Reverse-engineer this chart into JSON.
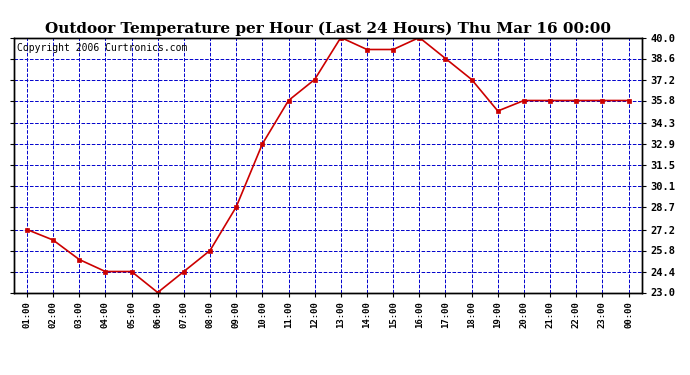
{
  "title": "Outdoor Temperature per Hour (Last 24 Hours) Thu Mar 16 00:00",
  "copyright": "Copyright 2006 Curtronics.com",
  "x_labels": [
    "01:00",
    "02:00",
    "03:00",
    "04:00",
    "05:00",
    "06:00",
    "07:00",
    "08:00",
    "09:00",
    "10:00",
    "11:00",
    "12:00",
    "13:00",
    "14:00",
    "15:00",
    "16:00",
    "17:00",
    "18:00",
    "19:00",
    "20:00",
    "21:00",
    "22:00",
    "23:00",
    "00:00"
  ],
  "y_values": [
    27.2,
    26.5,
    25.2,
    24.4,
    24.4,
    23.0,
    24.4,
    25.8,
    28.7,
    32.9,
    35.8,
    37.2,
    40.0,
    39.2,
    39.2,
    40.0,
    38.6,
    37.2,
    35.1,
    35.8,
    35.8,
    35.8,
    35.8,
    35.8
  ],
  "y_ticks": [
    23.0,
    24.4,
    25.8,
    27.2,
    28.7,
    30.1,
    31.5,
    32.9,
    34.3,
    35.8,
    37.2,
    38.6,
    40.0
  ],
  "y_min": 23.0,
  "y_max": 40.0,
  "line_color": "#cc0000",
  "marker_color": "#cc0000",
  "bg_color": "#ffffff",
  "plot_bg_color": "#ffffff",
  "grid_color": "#0000cc",
  "title_fontsize": 11,
  "copyright_fontsize": 7
}
